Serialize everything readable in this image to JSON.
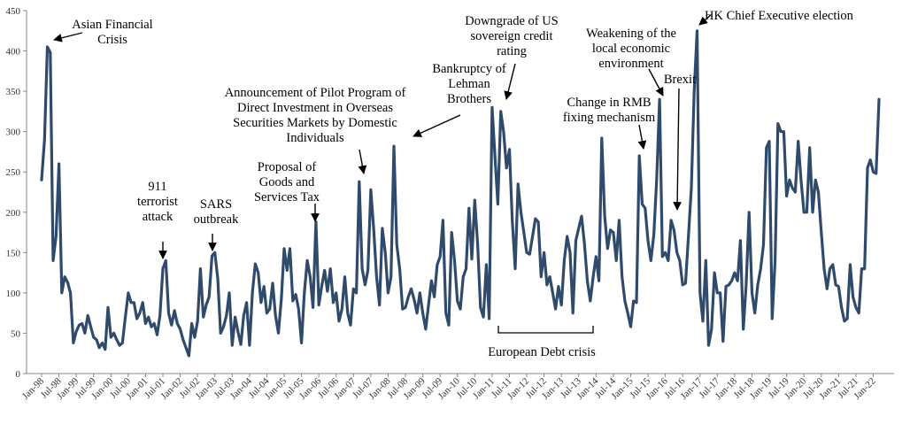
{
  "chart_data": {
    "type": "line",
    "title": "",
    "xlabel": "",
    "ylabel": "",
    "ylim": [
      0,
      450
    ],
    "yticks": [
      0,
      50,
      100,
      150,
      200,
      250,
      300,
      350,
      400,
      450
    ],
    "grid": false,
    "legend": "none",
    "line_color": "#2f4a6b",
    "x_tick_labels": [
      "Jan-98",
      "Jul-98",
      "Jan-99",
      "Jul-99",
      "Jan-00",
      "Jul-00",
      "Jan-01",
      "Jul-01",
      "Jan-02",
      "Jul-02",
      "Jan-03",
      "Jul-03",
      "Jan-04",
      "Jul-04",
      "Jan-05",
      "Jul-05",
      "Jan-06",
      "Jul-06",
      "Jan-07",
      "Jul-07",
      "Jan-08",
      "Jul-08",
      "Jan-09",
      "Jul-09",
      "Jan-10",
      "Jul-10",
      "Jan-11",
      "Jul-11",
      "Jan-12",
      "Jul-12",
      "Jan-13",
      "Jul-13",
      "Jan-14",
      "Jul-14",
      "Jan-15",
      "Jul-15",
      "Jan-16",
      "Jul-16",
      "Jan-17",
      "Jul-17",
      "Jan-18",
      "Jul-18",
      "Jan-19",
      "Jul-19",
      "Jan-20",
      "Jul-20",
      "Jan-21",
      "Jul-21",
      "Jan-22"
    ],
    "x_start": "Jan-98",
    "values": [
      240,
      290,
      405,
      398,
      140,
      170,
      260,
      100,
      120,
      113,
      100,
      38,
      52,
      60,
      62,
      50,
      72,
      58,
      45,
      42,
      32,
      38,
      30,
      82,
      45,
      50,
      42,
      35,
      38,
      70,
      100,
      88,
      88,
      68,
      75,
      88,
      62,
      70,
      58,
      62,
      48,
      72,
      130,
      140,
      75,
      60,
      78,
      62,
      55,
      42,
      32,
      22,
      62,
      45,
      65,
      130,
      70,
      85,
      95,
      146,
      150,
      118,
      50,
      58,
      72,
      100,
      35,
      70,
      52,
      36,
      72,
      88,
      35,
      100,
      136,
      125,
      88,
      108,
      75,
      80,
      112,
      72,
      50,
      92,
      155,
      128,
      155,
      90,
      98,
      80,
      38,
      100,
      140,
      120,
      82,
      188,
      85,
      108,
      128,
      102,
      130,
      88,
      100,
      65,
      80,
      120,
      75,
      60,
      105,
      100,
      238,
      130,
      110,
      128,
      228,
      180,
      120,
      85,
      180,
      150,
      100,
      120,
      282,
      160,
      130,
      80,
      82,
      95,
      105,
      92,
      75,
      100,
      75,
      55,
      85,
      115,
      95,
      135,
      145,
      190,
      75,
      60,
      175,
      140,
      90,
      80,
      120,
      130,
      205,
      142,
      215,
      160,
      82,
      70,
      135,
      68,
      330,
      270,
      210,
      325,
      300,
      255,
      278,
      190,
      130,
      235,
      200,
      175,
      150,
      148,
      170,
      192,
      188,
      120,
      150,
      110,
      120,
      100,
      80,
      108,
      85,
      140,
      170,
      150,
      75,
      165,
      180,
      195,
      160,
      115,
      90,
      120,
      145,
      115,
      292,
      195,
      155,
      178,
      175,
      140,
      190,
      120,
      90,
      75,
      58,
      90,
      88,
      270,
      210,
      205,
      165,
      140,
      172,
      240,
      340,
      145,
      150,
      140,
      190,
      178,
      150,
      140,
      110,
      112,
      170,
      230,
      350,
      425,
      100,
      65,
      140,
      35,
      55,
      125,
      100,
      100,
      40,
      108,
      110,
      115,
      125,
      115,
      165,
      55,
      110,
      200,
      100,
      75,
      110,
      130,
      160,
      280,
      288,
      68,
      140,
      310,
      300,
      300,
      220,
      240,
      230,
      225,
      288,
      240,
      200,
      200,
      280,
      200,
      240,
      225,
      175,
      130,
      105,
      130,
      135,
      110,
      108,
      82,
      65,
      68,
      135,
      95,
      82,
      75,
      130,
      130,
      255,
      265,
      250,
      248,
      340
    ],
    "annotations": [
      {
        "id": "asian-crisis",
        "lines": [
          "Asian Financial",
          "Crisis"
        ]
      },
      {
        "id": "911",
        "lines": [
          "911",
          "terrorist",
          "attack"
        ]
      },
      {
        "id": "sars",
        "lines": [
          "SARS",
          "outbreak"
        ]
      },
      {
        "id": "gst",
        "lines": [
          "Proposal of",
          "Goods and",
          "Services Tax"
        ]
      },
      {
        "id": "pilot",
        "lines": [
          "Announcement of Pilot Program of",
          "Direct Investment in Overseas",
          "Securities Markets by Domestic",
          "Individuals"
        ]
      },
      {
        "id": "lehman",
        "lines": [
          "Bankruptcy of",
          "Lehman",
          "Brothers"
        ]
      },
      {
        "id": "us-downgrade",
        "lines": [
          "Downgrade of US",
          "sovereign credit",
          "rating"
        ]
      },
      {
        "id": "european-debt",
        "lines": [
          "European Debt crisis"
        ]
      },
      {
        "id": "rmb",
        "lines": [
          "Change in RMB",
          "fixing mechanism"
        ]
      },
      {
        "id": "economic",
        "lines": [
          "Weakening of the",
          "local economic",
          "environment"
        ]
      },
      {
        "id": "brexit",
        "lines": [
          "Brexit"
        ]
      },
      {
        "id": "hk-election",
        "lines": [
          "HK Chief Executive election"
        ]
      }
    ]
  }
}
